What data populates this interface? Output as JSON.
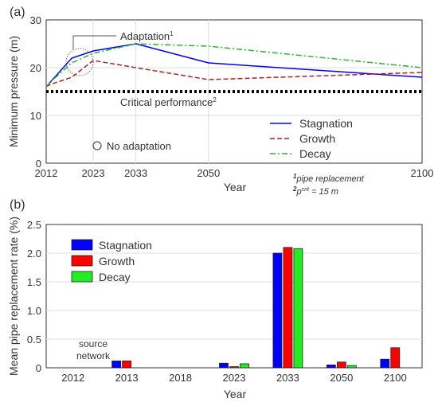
{
  "chart_data": [
    {
      "type": "line",
      "panel_label": "(a)",
      "xlabel": "Year",
      "ylabel": "Minimum pressure (m)",
      "ylim": [
        0,
        30
      ],
      "xlim": [
        2012,
        2100
      ],
      "x_ticks": [
        "2012",
        "2023",
        "2033",
        "2050",
        "2100"
      ],
      "y_ticks": [
        "0",
        "10",
        "20",
        "30"
      ],
      "x": [
        2012,
        2013,
        2018,
        2023,
        2033,
        2050,
        2100
      ],
      "series": [
        {
          "name": "Stagnation",
          "color": "#0000ff",
          "dash": "solid",
          "values": [
            16,
            17,
            22,
            23.5,
            25,
            21,
            18
          ]
        },
        {
          "name": "Growth",
          "color": "#b22222",
          "dash": "dashed",
          "values": [
            16,
            16.5,
            18,
            21.5,
            20,
            17.5,
            19
          ]
        },
        {
          "name": "Decay",
          "color": "#22bb22",
          "dash": "dashdot",
          "values": [
            16,
            17,
            21,
            23,
            25,
            24.5,
            20
          ]
        }
      ],
      "critical_value": 15,
      "annotations": {
        "adaptation": "Adaptation",
        "adaptation_sup": "1",
        "critical": "Critical performance",
        "critical_sup": "2",
        "no_adaptation": "No adaptation",
        "note1_sup": "1",
        "note1": "pipe replacement",
        "note2_sup": "2",
        "note2_p": "p",
        "note2_crit": "crit",
        "note2_rest": " = 15 m"
      }
    },
    {
      "type": "bar",
      "panel_label": "(b)",
      "xlabel": "Year",
      "ylabel": "Mean pipe replacement rate (%)",
      "ylim": [
        0,
        2.5
      ],
      "y_ticks": [
        "0",
        "0.5",
        "1.0",
        "1.5",
        "2.0",
        "2.5"
      ],
      "categories": [
        "2012",
        "2013",
        "2018",
        "2023",
        "2033",
        "2050",
        "2100"
      ],
      "series": [
        {
          "name": "Stagnation",
          "color": "#0000ff",
          "values": [
            0,
            0.12,
            0,
            0.08,
            2.0,
            0.05,
            0.15
          ]
        },
        {
          "name": "Growth",
          "color": "#ff0000",
          "values": [
            0,
            0.12,
            0,
            0.02,
            2.1,
            0.1,
            0.35
          ]
        },
        {
          "name": "Decay",
          "color": "#22ee22",
          "values": [
            0,
            0,
            0,
            0.07,
            2.08,
            0.04,
            0
          ]
        }
      ],
      "annotations": {
        "source_line1": "source",
        "source_line2": "network"
      }
    }
  ]
}
